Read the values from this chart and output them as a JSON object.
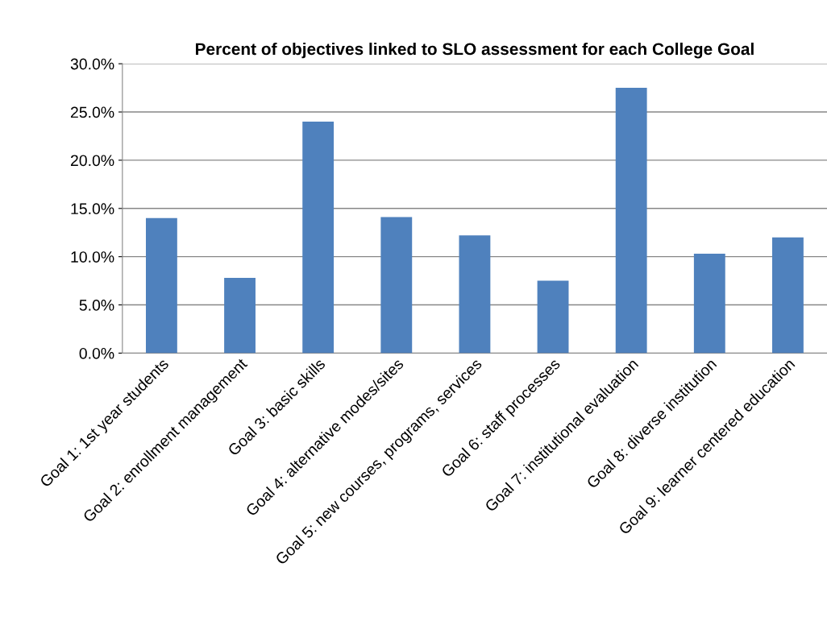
{
  "chart_data": {
    "type": "bar",
    "title": "Percent of objectives linked to SLO assessment for each College Goal",
    "categories": [
      "Goal 1: 1st year students",
      "Goal 2: enrollment management",
      "Goal 3: basic skills",
      "Goal 4: alternative modes/sites",
      "Goal 5: new courses, programs, services",
      "Goal 6: staff processes",
      "Goal 7: institutional evaluation",
      "Goal 8: diverse institution",
      "Goal 9: learner centered education"
    ],
    "values": [
      14.0,
      7.8,
      24.0,
      14.1,
      12.2,
      7.5,
      27.5,
      10.3,
      12.0
    ],
    "color": "#4f81bd",
    "ylim": [
      0,
      30
    ],
    "yticks": [
      {
        "value": 0,
        "label": "0.0%"
      },
      {
        "value": 5,
        "label": "5.0%"
      },
      {
        "value": 10,
        "label": "10.0%"
      },
      {
        "value": 15,
        "label": "15.0%"
      },
      {
        "value": 20,
        "label": "20.0%"
      },
      {
        "value": 25,
        "label": "25.0%"
      },
      {
        "value": 30,
        "label": "30.0%"
      }
    ],
    "grid": "y",
    "legend": false
  }
}
